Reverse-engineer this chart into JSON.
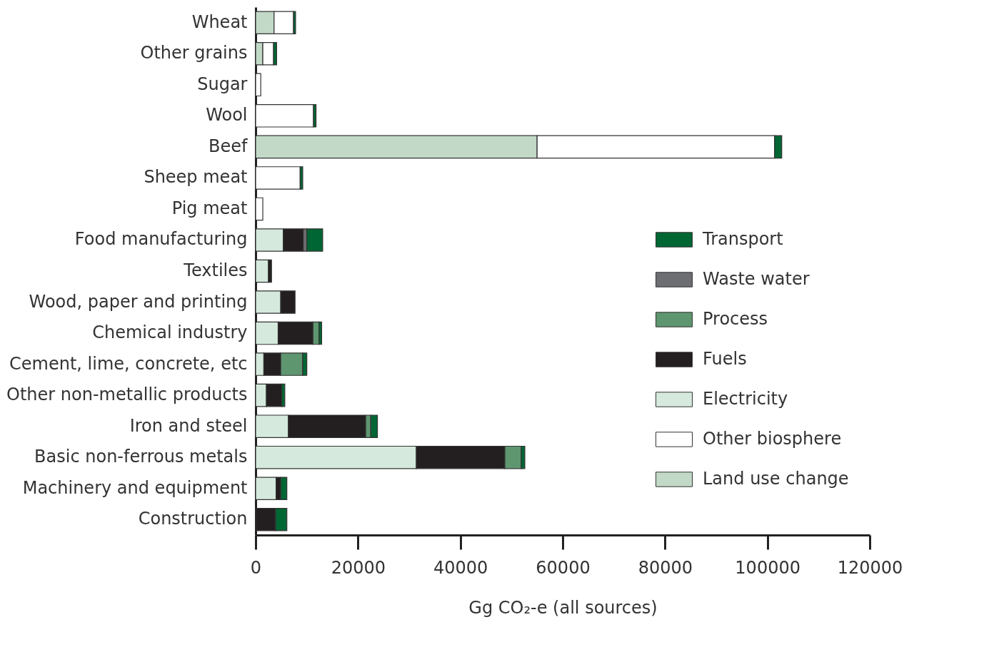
{
  "chart_data": {
    "type": "bar",
    "orientation": "horizontal",
    "stacked": true,
    "xlabel": "Gg CO₂-e (all sources)",
    "categories": [
      "Wheat",
      "Other grains",
      "Sugar",
      "Wool",
      "Beef",
      "Sheep meat",
      "Pig meat",
      "Food manufacturing",
      "Textiles",
      "Wood, paper and printing",
      "Chemical industry",
      "Cement, lime, concrete, etc",
      "Other non-metallic products",
      "Iron and steel",
      "Basic non-ferrous metals",
      "Machinery and equipment",
      "Construction"
    ],
    "series": [
      {
        "name": "Land use change",
        "color": "#c2d9c8",
        "values": [
          3600,
          1400,
          null,
          null,
          55000,
          null,
          null,
          null,
          null,
          null,
          null,
          null,
          null,
          null,
          null,
          null,
          null
        ]
      },
      {
        "name": "Other biosphere",
        "color": "#ffffff",
        "values": [
          3800,
          2100,
          1000,
          11300,
          46400,
          8700,
          1400,
          null,
          null,
          null,
          null,
          null,
          null,
          null,
          null,
          null,
          null
        ]
      },
      {
        "name": "Electricity",
        "color": "#d5eadc",
        "values": [
          null,
          null,
          null,
          null,
          null,
          null,
          null,
          5400,
          2500,
          4900,
          4400,
          1600,
          2100,
          6400,
          31400,
          4000,
          null
        ]
      },
      {
        "name": "Fuels",
        "color": "#231f20",
        "values": [
          null,
          null,
          null,
          null,
          null,
          null,
          null,
          3900,
          600,
          2800,
          6800,
          3300,
          3000,
          15100,
          17300,
          900,
          3900
        ]
      },
      {
        "name": "Process",
        "color": "#5e9670",
        "values": [
          null,
          null,
          null,
          null,
          null,
          null,
          null,
          null,
          null,
          null,
          1200,
          4300,
          null,
          1000,
          3200,
          null,
          null
        ]
      },
      {
        "name": "Waste water",
        "color": "#6d6e71",
        "values": [
          null,
          null,
          null,
          null,
          null,
          null,
          null,
          700,
          null,
          null,
          null,
          null,
          null,
          null,
          null,
          null,
          null
        ]
      },
      {
        "name": "Transport",
        "color": "#006633",
        "values": [
          400,
          600,
          null,
          500,
          1400,
          500,
          null,
          3100,
          null,
          null,
          500,
          800,
          600,
          1300,
          700,
          1200,
          2200
        ]
      }
    ],
    "xlim": [
      0,
      120000
    ],
    "xticks": [
      0,
      20000,
      40000,
      60000,
      80000,
      100000,
      120000
    ],
    "grid": false,
    "legend": "right"
  }
}
